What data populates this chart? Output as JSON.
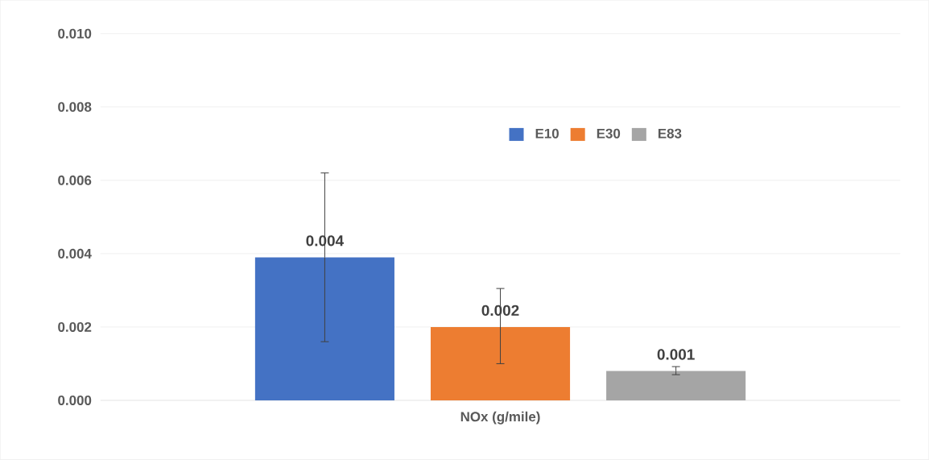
{
  "chart_data": {
    "type": "bar",
    "categories": [
      "NOx (g/mile)"
    ],
    "series": [
      {
        "name": "E10",
        "color": "#4472c4",
        "values": [
          0.0039
        ],
        "errors": [
          [
            0.0016,
            0.0062
          ]
        ],
        "value_labels": [
          "0.004"
        ]
      },
      {
        "name": "E30",
        "color": "#ed7d31",
        "values": [
          0.002
        ],
        "errors": [
          [
            0.001,
            0.00305
          ]
        ],
        "value_labels": [
          "0.002"
        ]
      },
      {
        "name": "E83",
        "color": "#a5a5a5",
        "values": [
          0.0008
        ],
        "errors": [
          [
            0.0007,
            0.00092
          ]
        ],
        "value_labels": [
          "0.001"
        ]
      }
    ],
    "ylim": [
      0,
      0.01
    ],
    "yticks": [
      {
        "value": 0,
        "label": "0.000"
      },
      {
        "value": 0.002,
        "label": "0.002"
      },
      {
        "value": 0.004,
        "label": "0.004"
      },
      {
        "value": 0.006,
        "label": "0.006"
      },
      {
        "value": 0.008,
        "label": "0.008"
      },
      {
        "value": 0.01,
        "label": "0.010"
      }
    ],
    "grid": "y",
    "legend": "top right"
  }
}
